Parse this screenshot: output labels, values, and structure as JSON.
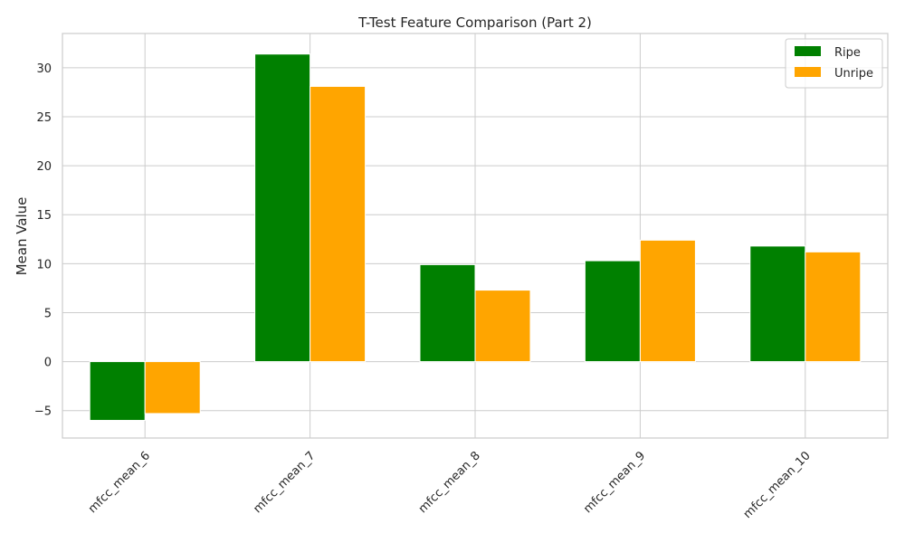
{
  "chart_data": {
    "type": "bar",
    "title": "T-Test Feature Comparison (Part 2)",
    "xlabel": "",
    "ylabel": "Mean Value",
    "categories": [
      "mfcc_mean_6",
      "mfcc_mean_7",
      "mfcc_mean_8",
      "mfcc_mean_9",
      "mfcc_mean_10"
    ],
    "series": [
      {
        "name": "Ripe",
        "color": "#008000",
        "values": [
          -6.0,
          31.4,
          9.9,
          10.3,
          11.8
        ]
      },
      {
        "name": "Unripe",
        "color": "#FFA500",
        "values": [
          -5.3,
          28.1,
          7.3,
          12.4,
          11.2
        ]
      }
    ],
    "ylim": [
      -7.8,
      33.5
    ],
    "yticks": [
      -5,
      0,
      5,
      10,
      15,
      20,
      25,
      30
    ],
    "ytick_labels": [
      "−5",
      "0",
      "5",
      "10",
      "15",
      "20",
      "25",
      "30"
    ],
    "grid": true,
    "legend_position": "top-right"
  }
}
